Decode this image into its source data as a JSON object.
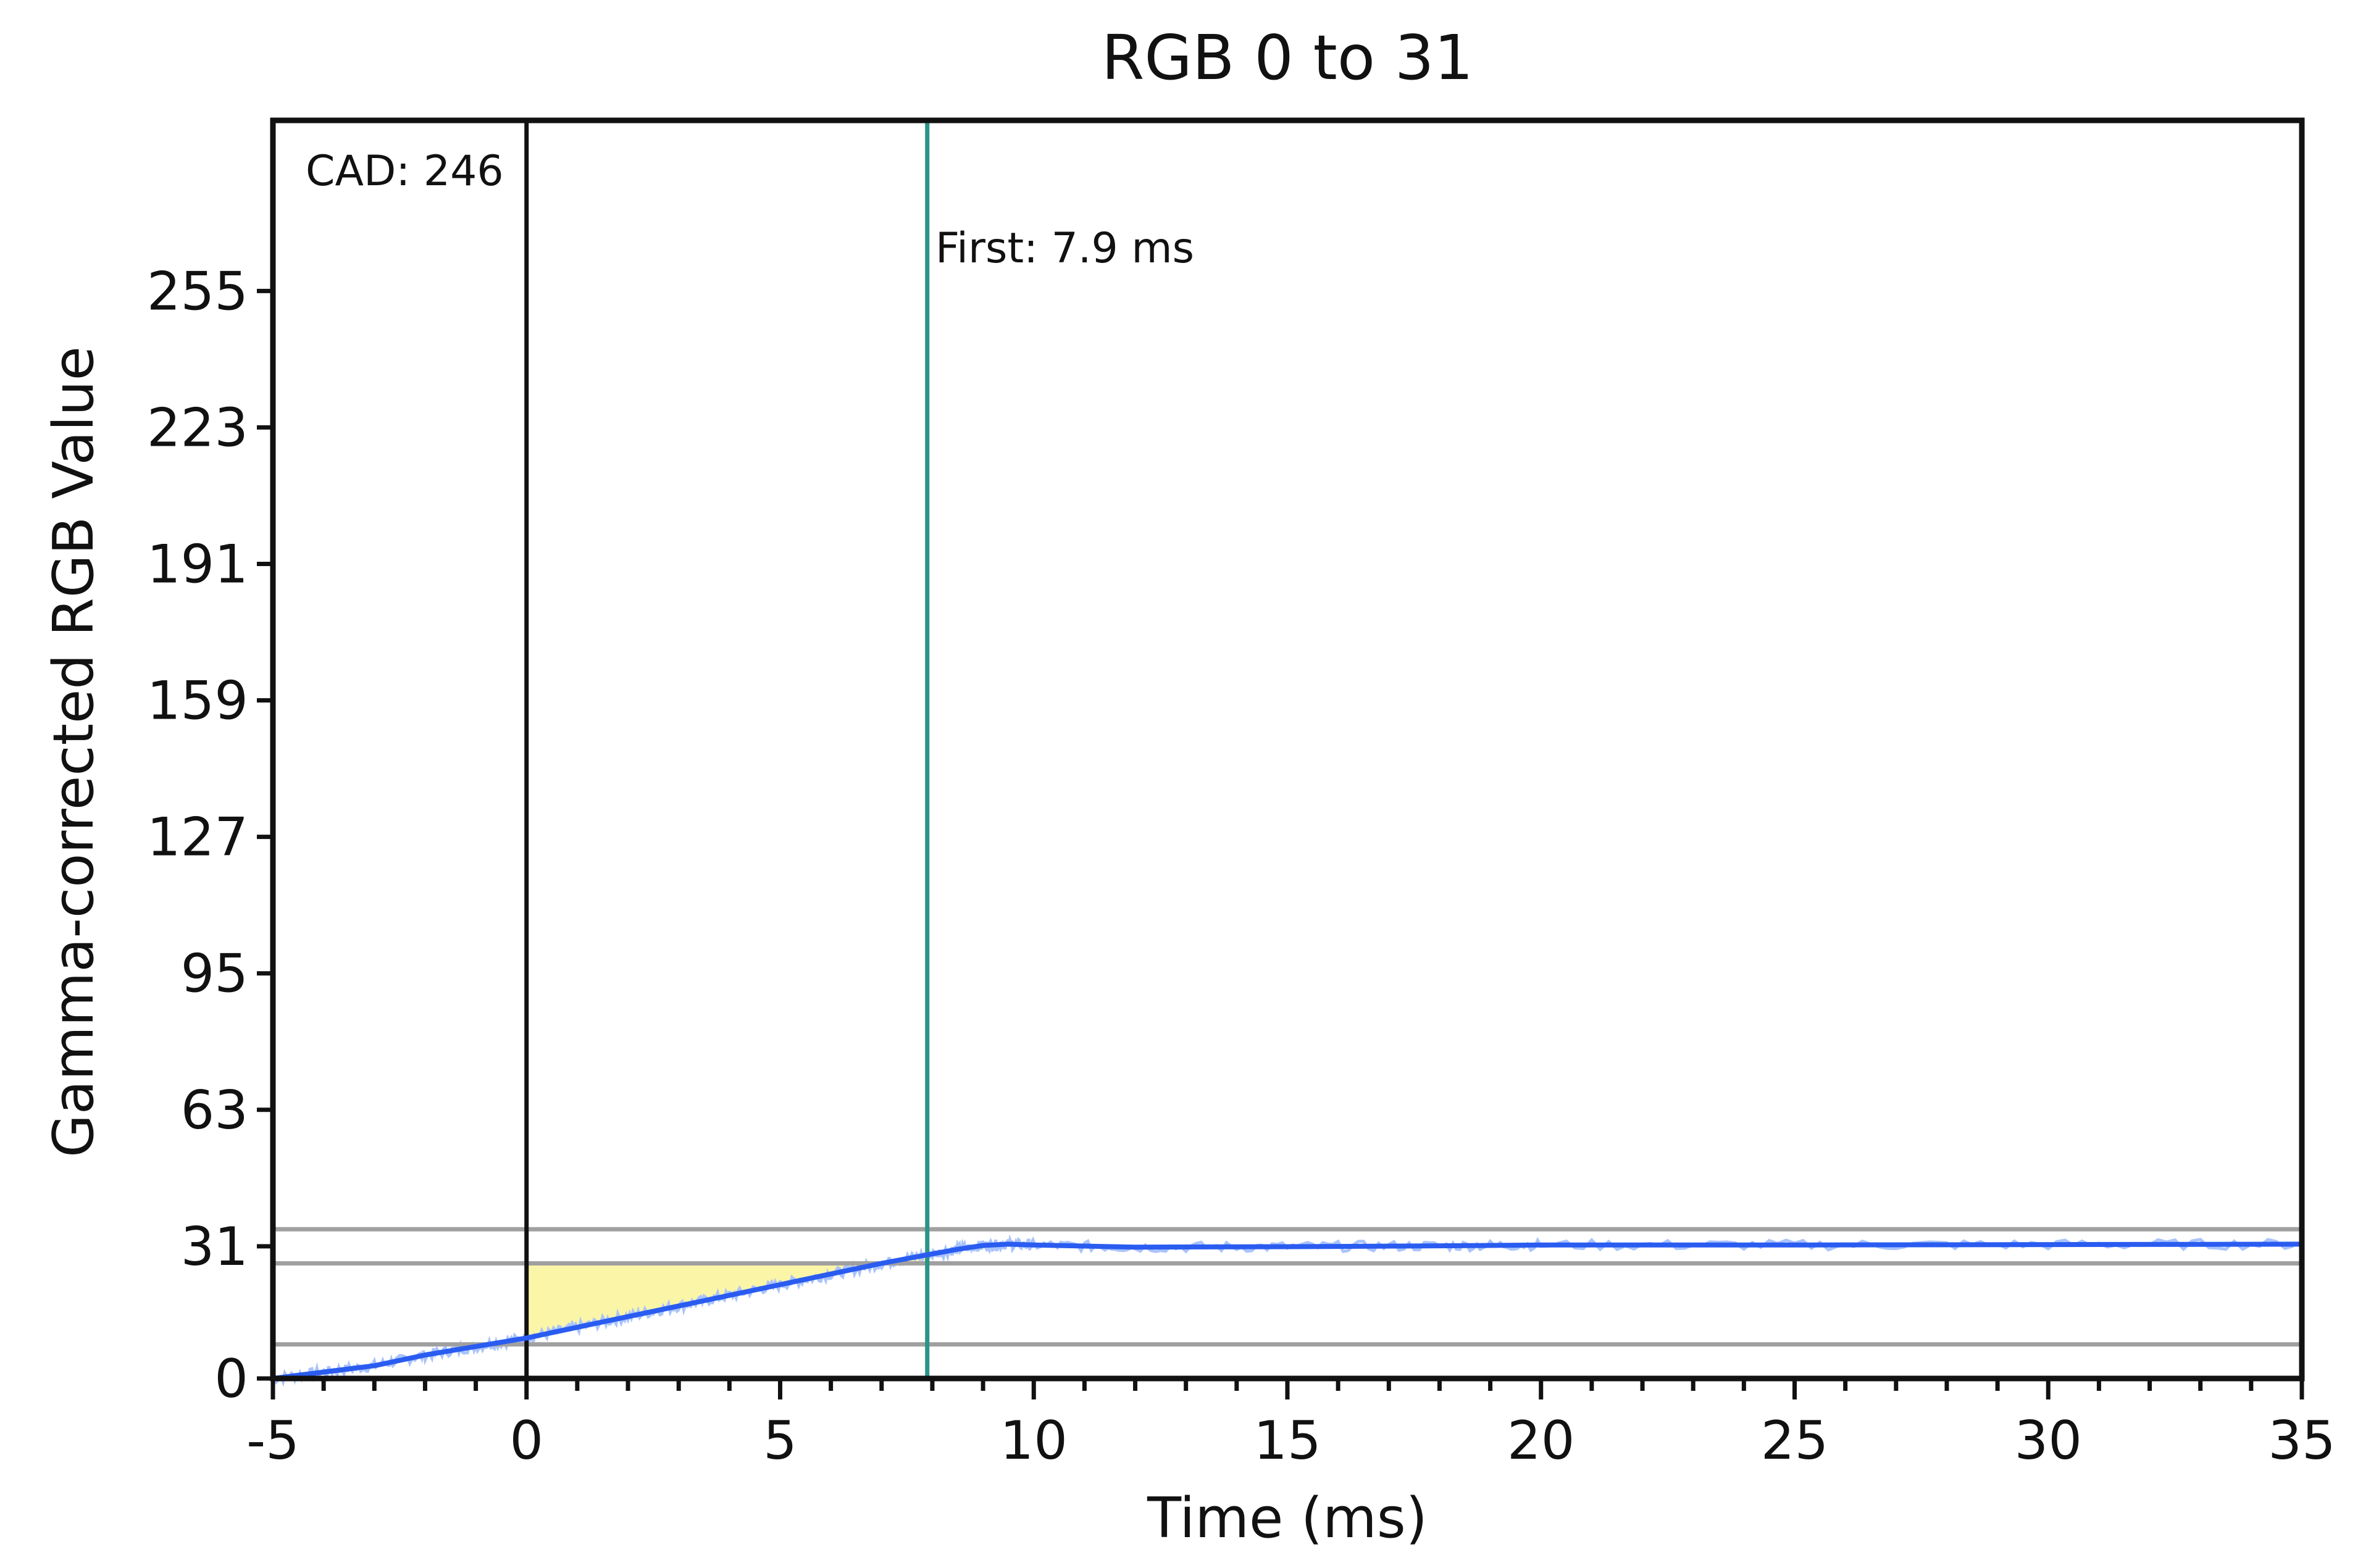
{
  "chart_data": {
    "type": "line",
    "title": "RGB 0 to 31",
    "xlabel": "Time (ms)",
    "ylabel": "Gamma-corrected RGB Value",
    "xlim": [
      -5,
      35
    ],
    "ylim": [
      0,
      295
    ],
    "x_ticks": [
      -5,
      0,
      5,
      10,
      15,
      20,
      25,
      30,
      35
    ],
    "x_tick_labels": [
      "-5",
      "0",
      "5",
      "10",
      "15",
      "20",
      "25",
      "30",
      "35"
    ],
    "y_ticks": [
      0,
      31,
      63,
      95,
      127,
      159,
      191,
      223,
      255
    ],
    "y_tick_labels": [
      "0",
      "31",
      "63",
      "95",
      "127",
      "159",
      "191",
      "223",
      "255"
    ],
    "grid": false,
    "legend": "none",
    "series": [
      {
        "color": "#2a5cf0",
        "raw_color": "#a9c3fb",
        "x": [
          -5,
          -4,
          -3,
          -2,
          -1,
          0,
          1,
          2,
          3,
          4,
          5,
          6,
          7,
          7.9,
          8.5,
          9,
          9.5,
          10,
          12,
          15,
          18,
          20,
          25,
          30,
          35
        ],
        "y": [
          0,
          1.5,
          3,
          5.5,
          7.5,
          9.5,
          12,
          14.5,
          17,
          19.5,
          22,
          24.5,
          27,
          29,
          30.3,
          31.2,
          31.5,
          31.3,
          30.8,
          30.9,
          31.1,
          31.3,
          31.3,
          31.4,
          31.5
        ]
      }
    ],
    "reference_lines": {
      "horizontal": [
        8,
        27,
        35
      ],
      "horizontal_color": "#a0a0a0",
      "vertical": [
        {
          "x": 0,
          "color": "#111111"
        },
        {
          "x": 7.9,
          "color": "#2a9488"
        }
      ]
    },
    "shaded_region": {
      "x_start": 0,
      "x_end": 7.9,
      "y_top": 27,
      "color": "#fbf5a8"
    },
    "annotations": {
      "cad": "CAD: 246",
      "first": "First: 7.9 ms"
    }
  }
}
